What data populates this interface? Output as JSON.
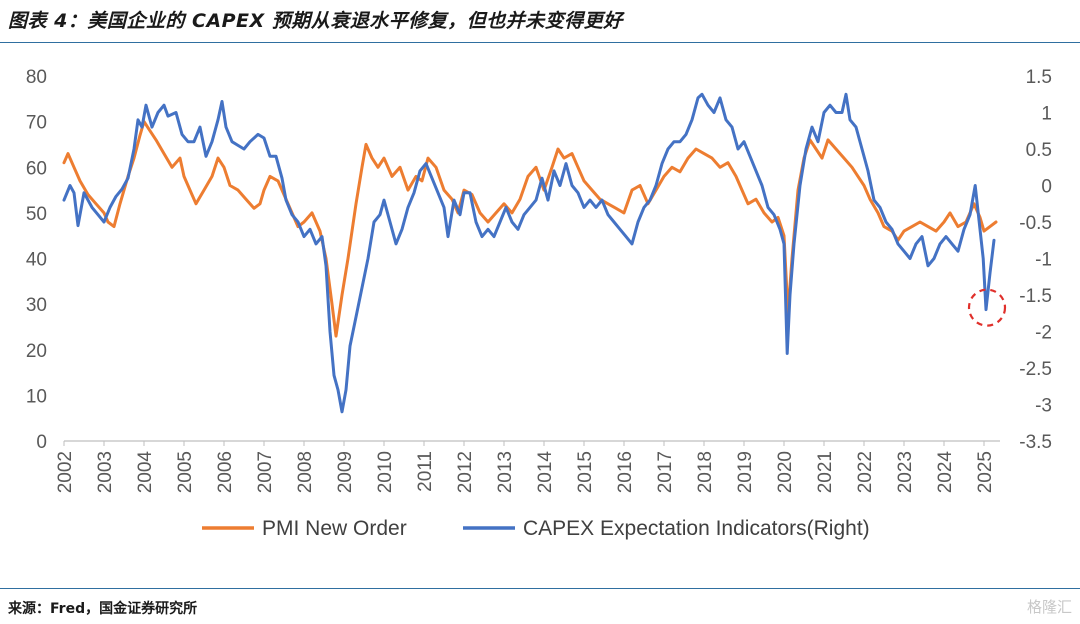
{
  "title": "图表 4：美国企业的 CAPEX 预期从衰退水平修复，但也并未变得更好",
  "source": "来源：Fred，国金证券研究所",
  "watermark": "格隆汇",
  "chart_data": {
    "type": "line",
    "title": "",
    "xlabel": "",
    "ylabel": "",
    "x_ticks": [
      "2002",
      "2003",
      "2004",
      "2005",
      "2006",
      "2007",
      "2008",
      "2009",
      "2010",
      "2011",
      "2012",
      "2013",
      "2014",
      "2015",
      "2016",
      "2017",
      "2018",
      "2019",
      "2020",
      "2021",
      "2022",
      "2023",
      "2024",
      "2025"
    ],
    "y_left": {
      "ylim": [
        0,
        80
      ],
      "ticks": [
        "0",
        "10",
        "20",
        "30",
        "40",
        "50",
        "60",
        "70",
        "80"
      ]
    },
    "y_right": {
      "ylim": [
        -3.5,
        1.5
      ],
      "ticks": [
        "-3.5",
        "-3",
        "-2.5",
        "-2",
        "-1.5",
        "-1",
        "-0.5",
        "0",
        "0.5",
        "1",
        "1.5"
      ]
    },
    "legend_position": "bottom",
    "grid": false,
    "annotation": "red-dashed-circle-at-2025-capex-low",
    "series": [
      {
        "name": "PMI New Order",
        "axis": "left",
        "color": "#ED7D31",
        "points": [
          [
            2002.0,
            61
          ],
          [
            2002.1,
            63
          ],
          [
            2002.25,
            60
          ],
          [
            2002.4,
            57
          ],
          [
            2002.6,
            54
          ],
          [
            2002.8,
            52
          ],
          [
            2003.0,
            50
          ],
          [
            2003.1,
            48
          ],
          [
            2003.25,
            47
          ],
          [
            2003.4,
            52
          ],
          [
            2003.6,
            58
          ],
          [
            2003.75,
            62
          ],
          [
            2003.9,
            67
          ],
          [
            2004.0,
            70
          ],
          [
            2004.15,
            68
          ],
          [
            2004.3,
            66
          ],
          [
            2004.5,
            63
          ],
          [
            2004.7,
            60
          ],
          [
            2004.9,
            62
          ],
          [
            2005.0,
            58
          ],
          [
            2005.15,
            55
          ],
          [
            2005.3,
            52
          ],
          [
            2005.5,
            55
          ],
          [
            2005.7,
            58
          ],
          [
            2005.85,
            62
          ],
          [
            2006.0,
            60
          ],
          [
            2006.15,
            56
          ],
          [
            2006.35,
            55
          ],
          [
            2006.55,
            53
          ],
          [
            2006.75,
            51
          ],
          [
            2006.9,
            52
          ],
          [
            2007.0,
            55
          ],
          [
            2007.15,
            58
          ],
          [
            2007.35,
            57
          ],
          [
            2007.5,
            54
          ],
          [
            2007.7,
            50
          ],
          [
            2007.85,
            47
          ],
          [
            2008.0,
            48
          ],
          [
            2008.2,
            50
          ],
          [
            2008.4,
            46
          ],
          [
            2008.55,
            40
          ],
          [
            2008.7,
            30
          ],
          [
            2008.8,
            23
          ],
          [
            2008.95,
            32
          ],
          [
            2009.1,
            40
          ],
          [
            2009.3,
            52
          ],
          [
            2009.45,
            60
          ],
          [
            2009.55,
            65
          ],
          [
            2009.7,
            62
          ],
          [
            2009.85,
            60
          ],
          [
            2010.0,
            62
          ],
          [
            2010.2,
            58
          ],
          [
            2010.4,
            60
          ],
          [
            2010.6,
            55
          ],
          [
            2010.8,
            58
          ],
          [
            2010.95,
            57
          ],
          [
            2011.1,
            62
          ],
          [
            2011.3,
            60
          ],
          [
            2011.5,
            55
          ],
          [
            2011.7,
            53
          ],
          [
            2011.85,
            50
          ],
          [
            2012.0,
            55
          ],
          [
            2012.2,
            54
          ],
          [
            2012.4,
            50
          ],
          [
            2012.6,
            48
          ],
          [
            2012.8,
            50
          ],
          [
            2013.0,
            52
          ],
          [
            2013.2,
            50
          ],
          [
            2013.4,
            53
          ],
          [
            2013.6,
            58
          ],
          [
            2013.8,
            60
          ],
          [
            2014.0,
            55
          ],
          [
            2014.2,
            60
          ],
          [
            2014.35,
            64
          ],
          [
            2014.5,
            62
          ],
          [
            2014.7,
            63
          ],
          [
            2014.85,
            60
          ],
          [
            2015.0,
            57
          ],
          [
            2015.2,
            55
          ],
          [
            2015.4,
            53
          ],
          [
            2015.6,
            52
          ],
          [
            2015.8,
            51
          ],
          [
            2016.0,
            50
          ],
          [
            2016.2,
            55
          ],
          [
            2016.4,
            56
          ],
          [
            2016.6,
            52
          ],
          [
            2016.8,
            55
          ],
          [
            2017.0,
            58
          ],
          [
            2017.2,
            60
          ],
          [
            2017.4,
            59
          ],
          [
            2017.6,
            62
          ],
          [
            2017.8,
            64
          ],
          [
            2018.0,
            63
          ],
          [
            2018.2,
            62
          ],
          [
            2018.4,
            60
          ],
          [
            2018.6,
            61
          ],
          [
            2018.8,
            58
          ],
          [
            2018.95,
            55
          ],
          [
            2019.1,
            52
          ],
          [
            2019.3,
            53
          ],
          [
            2019.5,
            50
          ],
          [
            2019.7,
            48
          ],
          [
            2019.85,
            49
          ],
          [
            2020.0,
            45
          ],
          [
            2020.1,
            28
          ],
          [
            2020.2,
            40
          ],
          [
            2020.35,
            55
          ],
          [
            2020.5,
            62
          ],
          [
            2020.65,
            66
          ],
          [
            2020.8,
            64
          ],
          [
            2020.95,
            62
          ],
          [
            2021.1,
            66
          ],
          [
            2021.3,
            64
          ],
          [
            2021.5,
            62
          ],
          [
            2021.7,
            60
          ],
          [
            2021.85,
            58
          ],
          [
            2022.0,
            56
          ],
          [
            2022.15,
            53
          ],
          [
            2022.35,
            50
          ],
          [
            2022.5,
            47
          ],
          [
            2022.7,
            46
          ],
          [
            2022.85,
            44
          ],
          [
            2023.0,
            46
          ],
          [
            2023.2,
            47
          ],
          [
            2023.4,
            48
          ],
          [
            2023.6,
            47
          ],
          [
            2023.8,
            46
          ],
          [
            2024.0,
            48
          ],
          [
            2024.15,
            50
          ],
          [
            2024.35,
            47
          ],
          [
            2024.55,
            48
          ],
          [
            2024.75,
            52
          ],
          [
            2024.9,
            49
          ],
          [
            2025.0,
            46
          ],
          [
            2025.15,
            47
          ],
          [
            2025.3,
            48
          ]
        ]
      },
      {
        "name": "CAPEX Expectation Indicators(Right)",
        "axis": "right",
        "color": "#4472C4",
        "points": [
          [
            2002.0,
            -0.2
          ],
          [
            2002.15,
            0.0
          ],
          [
            2002.25,
            -0.1
          ],
          [
            2002.35,
            -0.55
          ],
          [
            2002.5,
            -0.1
          ],
          [
            2002.7,
            -0.3
          ],
          [
            2002.85,
            -0.4
          ],
          [
            2003.0,
            -0.5
          ],
          [
            2003.15,
            -0.3
          ],
          [
            2003.3,
            -0.15
          ],
          [
            2003.45,
            -0.05
          ],
          [
            2003.6,
            0.1
          ],
          [
            2003.75,
            0.5
          ],
          [
            2003.85,
            0.9
          ],
          [
            2003.95,
            0.8
          ],
          [
            2004.05,
            1.1
          ],
          [
            2004.2,
            0.8
          ],
          [
            2004.35,
            1.0
          ],
          [
            2004.5,
            1.1
          ],
          [
            2004.6,
            0.95
          ],
          [
            2004.8,
            1.0
          ],
          [
            2004.95,
            0.7
          ],
          [
            2005.1,
            0.6
          ],
          [
            2005.25,
            0.6
          ],
          [
            2005.4,
            0.8
          ],
          [
            2005.55,
            0.4
          ],
          [
            2005.7,
            0.6
          ],
          [
            2005.85,
            0.9
          ],
          [
            2005.95,
            1.15
          ],
          [
            2006.05,
            0.8
          ],
          [
            2006.2,
            0.6
          ],
          [
            2006.35,
            0.55
          ],
          [
            2006.5,
            0.5
          ],
          [
            2006.65,
            0.6
          ],
          [
            2006.85,
            0.7
          ],
          [
            2007.0,
            0.65
          ],
          [
            2007.15,
            0.4
          ],
          [
            2007.3,
            0.4
          ],
          [
            2007.45,
            0.1
          ],
          [
            2007.55,
            -0.2
          ],
          [
            2007.7,
            -0.4
          ],
          [
            2007.85,
            -0.5
          ],
          [
            2008.0,
            -0.7
          ],
          [
            2008.15,
            -0.6
          ],
          [
            2008.3,
            -0.8
          ],
          [
            2008.45,
            -0.7
          ],
          [
            2008.55,
            -1.1
          ],
          [
            2008.65,
            -2.0
          ],
          [
            2008.75,
            -2.6
          ],
          [
            2008.85,
            -2.8
          ],
          [
            2008.95,
            -3.1
          ],
          [
            2009.05,
            -2.8
          ],
          [
            2009.15,
            -2.2
          ],
          [
            2009.3,
            -1.8
          ],
          [
            2009.45,
            -1.4
          ],
          [
            2009.6,
            -1.0
          ],
          [
            2009.75,
            -0.5
          ],
          [
            2009.9,
            -0.4
          ],
          [
            2010.0,
            -0.2
          ],
          [
            2010.15,
            -0.5
          ],
          [
            2010.3,
            -0.8
          ],
          [
            2010.45,
            -0.6
          ],
          [
            2010.6,
            -0.3
          ],
          [
            2010.75,
            -0.1
          ],
          [
            2010.9,
            0.2
          ],
          [
            2011.05,
            0.3
          ],
          [
            2011.2,
            0.1
          ],
          [
            2011.35,
            -0.1
          ],
          [
            2011.5,
            -0.3
          ],
          [
            2011.6,
            -0.7
          ],
          [
            2011.75,
            -0.2
          ],
          [
            2011.9,
            -0.4
          ],
          [
            2012.0,
            -0.1
          ],
          [
            2012.15,
            -0.1
          ],
          [
            2012.3,
            -0.5
          ],
          [
            2012.45,
            -0.7
          ],
          [
            2012.6,
            -0.6
          ],
          [
            2012.75,
            -0.7
          ],
          [
            2012.9,
            -0.5
          ],
          [
            2013.05,
            -0.3
          ],
          [
            2013.2,
            -0.5
          ],
          [
            2013.35,
            -0.6
          ],
          [
            2013.5,
            -0.4
          ],
          [
            2013.65,
            -0.3
          ],
          [
            2013.8,
            -0.2
          ],
          [
            2013.95,
            0.1
          ],
          [
            2014.1,
            -0.2
          ],
          [
            2014.25,
            0.2
          ],
          [
            2014.4,
            0.0
          ],
          [
            2014.55,
            0.3
          ],
          [
            2014.7,
            0.0
          ],
          [
            2014.85,
            -0.1
          ],
          [
            2015.0,
            -0.3
          ],
          [
            2015.15,
            -0.2
          ],
          [
            2015.3,
            -0.3
          ],
          [
            2015.45,
            -0.2
          ],
          [
            2015.6,
            -0.4
          ],
          [
            2015.75,
            -0.5
          ],
          [
            2015.9,
            -0.6
          ],
          [
            2016.05,
            -0.7
          ],
          [
            2016.2,
            -0.8
          ],
          [
            2016.35,
            -0.5
          ],
          [
            2016.5,
            -0.3
          ],
          [
            2016.65,
            -0.2
          ],
          [
            2016.8,
            0.0
          ],
          [
            2016.95,
            0.3
          ],
          [
            2017.1,
            0.5
          ],
          [
            2017.25,
            0.6
          ],
          [
            2017.4,
            0.6
          ],
          [
            2017.55,
            0.7
          ],
          [
            2017.7,
            0.9
          ],
          [
            2017.85,
            1.2
          ],
          [
            2017.95,
            1.25
          ],
          [
            2018.1,
            1.1
          ],
          [
            2018.25,
            1.0
          ],
          [
            2018.4,
            1.2
          ],
          [
            2018.55,
            0.9
          ],
          [
            2018.7,
            0.8
          ],
          [
            2018.85,
            0.5
          ],
          [
            2019.0,
            0.6
          ],
          [
            2019.15,
            0.4
          ],
          [
            2019.3,
            0.2
          ],
          [
            2019.45,
            0.0
          ],
          [
            2019.6,
            -0.3
          ],
          [
            2019.75,
            -0.4
          ],
          [
            2019.9,
            -0.6
          ],
          [
            2020.0,
            -0.8
          ],
          [
            2020.08,
            -2.3
          ],
          [
            2020.15,
            -1.5
          ],
          [
            2020.25,
            -0.8
          ],
          [
            2020.4,
            0.0
          ],
          [
            2020.55,
            0.5
          ],
          [
            2020.7,
            0.8
          ],
          [
            2020.85,
            0.6
          ],
          [
            2021.0,
            1.0
          ],
          [
            2021.15,
            1.1
          ],
          [
            2021.3,
            1.0
          ],
          [
            2021.45,
            1.0
          ],
          [
            2021.55,
            1.25
          ],
          [
            2021.65,
            0.9
          ],
          [
            2021.8,
            0.8
          ],
          [
            2021.95,
            0.5
          ],
          [
            2022.1,
            0.2
          ],
          [
            2022.25,
            -0.2
          ],
          [
            2022.4,
            -0.3
          ],
          [
            2022.55,
            -0.5
          ],
          [
            2022.7,
            -0.6
          ],
          [
            2022.85,
            -0.8
          ],
          [
            2023.0,
            -0.9
          ],
          [
            2023.15,
            -1.0
          ],
          [
            2023.3,
            -0.8
          ],
          [
            2023.45,
            -0.7
          ],
          [
            2023.6,
            -1.1
          ],
          [
            2023.75,
            -1.0
          ],
          [
            2023.9,
            -0.8
          ],
          [
            2024.05,
            -0.7
          ],
          [
            2024.2,
            -0.8
          ],
          [
            2024.35,
            -0.9
          ],
          [
            2024.5,
            -0.6
          ],
          [
            2024.65,
            -0.4
          ],
          [
            2024.78,
            0.0
          ],
          [
            2024.88,
            -0.5
          ],
          [
            2024.98,
            -1.0
          ],
          [
            2025.05,
            -1.7
          ],
          [
            2025.15,
            -1.2
          ],
          [
            2025.25,
            -0.75
          ]
        ]
      }
    ]
  }
}
